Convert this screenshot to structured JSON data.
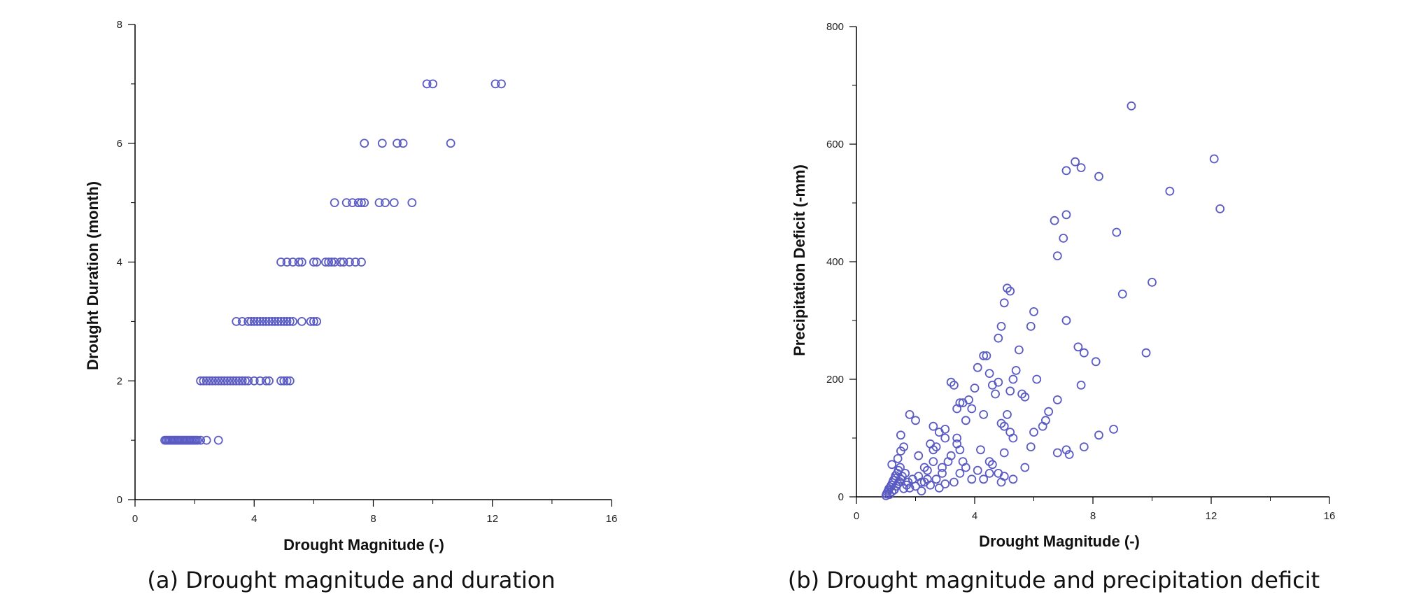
{
  "chart_data": [
    {
      "type": "scatter",
      "xlabel": "Drought Magnitude (-)",
      "ylabel": "Drought Duration (month)",
      "caption": "(a) Drought magnitude and duration",
      "xlim": [
        0,
        16
      ],
      "ylim": [
        0,
        8
      ],
      "xticks": [
        0,
        4,
        8,
        12,
        16
      ],
      "xminor": [
        2,
        6,
        10,
        14
      ],
      "yticks": [
        0,
        2,
        4,
        6,
        8
      ],
      "yminor": [
        1,
        3,
        5,
        7
      ],
      "marker_color": "#5b5bc4",
      "points": [
        [
          1.0,
          1
        ],
        [
          1.05,
          1
        ],
        [
          1.1,
          1
        ],
        [
          1.15,
          1
        ],
        [
          1.2,
          1
        ],
        [
          1.25,
          1
        ],
        [
          1.3,
          1
        ],
        [
          1.35,
          1
        ],
        [
          1.4,
          1
        ],
        [
          1.45,
          1
        ],
        [
          1.5,
          1
        ],
        [
          1.55,
          1
        ],
        [
          1.6,
          1
        ],
        [
          1.65,
          1
        ],
        [
          1.7,
          1
        ],
        [
          1.75,
          1
        ],
        [
          1.8,
          1
        ],
        [
          1.85,
          1
        ],
        [
          1.9,
          1
        ],
        [
          1.95,
          1
        ],
        [
          2.0,
          1
        ],
        [
          2.05,
          1
        ],
        [
          2.1,
          1
        ],
        [
          2.2,
          1
        ],
        [
          2.4,
          1
        ],
        [
          2.8,
          1
        ],
        [
          2.2,
          2
        ],
        [
          2.3,
          2
        ],
        [
          2.4,
          2
        ],
        [
          2.5,
          2
        ],
        [
          2.6,
          2
        ],
        [
          2.7,
          2
        ],
        [
          2.8,
          2
        ],
        [
          2.9,
          2
        ],
        [
          3.0,
          2
        ],
        [
          3.1,
          2
        ],
        [
          3.2,
          2
        ],
        [
          3.3,
          2
        ],
        [
          3.4,
          2
        ],
        [
          3.5,
          2
        ],
        [
          3.6,
          2
        ],
        [
          3.7,
          2
        ],
        [
          3.8,
          2
        ],
        [
          4.0,
          2
        ],
        [
          4.2,
          2
        ],
        [
          4.4,
          2
        ],
        [
          4.5,
          2
        ],
        [
          4.9,
          2
        ],
        [
          5.0,
          2
        ],
        [
          5.1,
          2
        ],
        [
          5.2,
          2
        ],
        [
          3.4,
          3
        ],
        [
          3.6,
          3
        ],
        [
          3.8,
          3
        ],
        [
          3.9,
          3
        ],
        [
          4.0,
          3
        ],
        [
          4.1,
          3
        ],
        [
          4.2,
          3
        ],
        [
          4.3,
          3
        ],
        [
          4.4,
          3
        ],
        [
          4.5,
          3
        ],
        [
          4.6,
          3
        ],
        [
          4.7,
          3
        ],
        [
          4.8,
          3
        ],
        [
          4.9,
          3
        ],
        [
          5.0,
          3
        ],
        [
          5.1,
          3
        ],
        [
          5.2,
          3
        ],
        [
          5.3,
          3
        ],
        [
          5.6,
          3
        ],
        [
          5.9,
          3
        ],
        [
          6.0,
          3
        ],
        [
          6.1,
          3
        ],
        [
          4.9,
          4
        ],
        [
          5.1,
          4
        ],
        [
          5.3,
          4
        ],
        [
          5.5,
          4
        ],
        [
          5.6,
          4
        ],
        [
          6.0,
          4
        ],
        [
          6.1,
          4
        ],
        [
          6.4,
          4
        ],
        [
          6.5,
          4
        ],
        [
          6.6,
          4
        ],
        [
          6.7,
          4
        ],
        [
          6.9,
          4
        ],
        [
          7.0,
          4
        ],
        [
          7.2,
          4
        ],
        [
          7.4,
          4
        ],
        [
          7.6,
          4
        ],
        [
          6.7,
          5
        ],
        [
          7.1,
          5
        ],
        [
          7.3,
          5
        ],
        [
          7.5,
          5
        ],
        [
          7.6,
          5
        ],
        [
          7.7,
          5
        ],
        [
          8.2,
          5
        ],
        [
          8.4,
          5
        ],
        [
          8.7,
          5
        ],
        [
          9.3,
          5
        ],
        [
          7.7,
          6
        ],
        [
          8.3,
          6
        ],
        [
          8.8,
          6
        ],
        [
          9.0,
          6
        ],
        [
          10.6,
          6
        ],
        [
          9.8,
          7
        ],
        [
          10.0,
          7
        ],
        [
          12.1,
          7
        ],
        [
          12.3,
          7
        ]
      ]
    },
    {
      "type": "scatter",
      "xlabel": "Drought Magnitude (-)",
      "ylabel": "Precipitation Deficit (-mm)",
      "caption": "(b) Drought magnitude and precipitation deficit",
      "xlim": [
        0,
        16
      ],
      "ylim": [
        0,
        800
      ],
      "xticks": [
        0,
        4,
        8,
        12,
        16
      ],
      "xminor": [
        2,
        6,
        10,
        14
      ],
      "yticks": [
        0,
        200,
        400,
        600,
        800
      ],
      "yminor": [
        100,
        300,
        500,
        700
      ],
      "marker_color": "#5b5bc4",
      "points": [
        [
          1.0,
          2
        ],
        [
          1.02,
          5
        ],
        [
          1.05,
          8
        ],
        [
          1.08,
          11
        ],
        [
          1.1,
          14
        ],
        [
          1.12,
          4
        ],
        [
          1.15,
          17
        ],
        [
          1.18,
          20
        ],
        [
          1.2,
          9
        ],
        [
          1.22,
          24
        ],
        [
          1.25,
          28
        ],
        [
          1.28,
          12
        ],
        [
          1.3,
          32
        ],
        [
          1.32,
          36
        ],
        [
          1.35,
          18
        ],
        [
          1.38,
          40
        ],
        [
          1.4,
          22
        ],
        [
          1.42,
          45
        ],
        [
          1.45,
          26
        ],
        [
          1.48,
          50
        ],
        [
          1.5,
          30
        ],
        [
          1.55,
          35
        ],
        [
          1.6,
          14
        ],
        [
          1.65,
          40
        ],
        [
          1.7,
          20
        ],
        [
          1.75,
          25
        ],
        [
          1.8,
          15
        ],
        [
          1.9,
          30
        ],
        [
          2.0,
          18
        ],
        [
          2.1,
          35
        ],
        [
          2.2,
          10
        ],
        [
          2.3,
          25
        ],
        [
          2.4,
          45
        ],
        [
          2.5,
          20
        ],
        [
          2.6,
          60
        ],
        [
          2.7,
          30
        ],
        [
          2.8,
          15
        ],
        [
          2.9,
          40
        ],
        [
          3.0,
          22
        ],
        [
          1.2,
          55
        ],
        [
          1.4,
          65
        ],
        [
          1.5,
          78
        ],
        [
          1.6,
          85
        ],
        [
          1.5,
          105
        ],
        [
          1.8,
          140
        ],
        [
          2.0,
          130
        ],
        [
          2.1,
          70
        ],
        [
          2.3,
          50
        ],
        [
          2.5,
          90
        ],
        [
          2.6,
          120
        ],
        [
          2.7,
          85
        ],
        [
          2.8,
          110
        ],
        [
          3.0,
          115
        ],
        [
          3.0,
          100
        ],
        [
          3.1,
          60
        ],
        [
          3.2,
          195
        ],
        [
          3.3,
          190
        ],
        [
          3.4,
          150
        ],
        [
          3.5,
          160
        ],
        [
          3.4,
          90
        ],
        [
          3.6,
          160
        ],
        [
          3.7,
          130
        ],
        [
          3.8,
          165
        ],
        [
          3.6,
          60
        ],
        [
          3.9,
          150
        ],
        [
          4.0,
          185
        ],
        [
          4.1,
          220
        ],
        [
          4.2,
          80
        ],
        [
          4.3,
          240
        ],
        [
          4.4,
          240
        ],
        [
          4.5,
          210
        ],
        [
          4.6,
          190
        ],
        [
          4.7,
          175
        ],
        [
          4.8,
          195
        ],
        [
          4.8,
          270
        ],
        [
          4.9,
          290
        ],
        [
          5.0,
          330
        ],
        [
          5.1,
          355
        ],
        [
          5.2,
          350
        ],
        [
          5.2,
          180
        ],
        [
          5.3,
          200
        ],
        [
          4.9,
          125
        ],
        [
          5.0,
          120
        ],
        [
          5.1,
          140
        ],
        [
          5.0,
          75
        ],
        [
          5.2,
          110
        ],
        [
          5.3,
          100
        ],
        [
          5.4,
          215
        ],
        [
          5.5,
          250
        ],
        [
          5.6,
          175
        ],
        [
          5.7,
          170
        ],
        [
          5.9,
          290
        ],
        [
          6.0,
          315
        ],
        [
          6.1,
          200
        ],
        [
          6.0,
          110
        ],
        [
          6.3,
          120
        ],
        [
          6.4,
          130
        ],
        [
          6.5,
          145
        ],
        [
          6.8,
          165
        ],
        [
          7.1,
          300
        ],
        [
          7.5,
          255
        ],
        [
          7.7,
          245
        ],
        [
          7.6,
          190
        ],
        [
          8.1,
          230
        ],
        [
          7.0,
          440
        ],
        [
          7.1,
          480
        ],
        [
          6.7,
          470
        ],
        [
          6.8,
          410
        ],
        [
          7.1,
          555
        ],
        [
          7.4,
          570
        ],
        [
          7.6,
          560
        ],
        [
          8.2,
          545
        ],
        [
          8.8,
          450
        ],
        [
          9.0,
          345
        ],
        [
          9.3,
          665
        ],
        [
          9.8,
          245
        ],
        [
          10.0,
          365
        ],
        [
          10.6,
          520
        ],
        [
          12.1,
          575
        ],
        [
          12.3,
          490
        ],
        [
          6.8,
          75
        ],
        [
          7.1,
          80
        ],
        [
          7.2,
          72
        ],
        [
          7.7,
          85
        ],
        [
          8.2,
          105
        ],
        [
          8.7,
          115
        ],
        [
          4.8,
          40
        ],
        [
          4.9,
          25
        ],
        [
          5.0,
          35
        ],
        [
          5.3,
          30
        ],
        [
          5.7,
          50
        ],
        [
          5.9,
          85
        ],
        [
          4.3,
          30
        ],
        [
          4.5,
          40
        ],
        [
          4.6,
          55
        ],
        [
          4.1,
          45
        ],
        [
          3.9,
          30
        ],
        [
          3.7,
          50
        ],
        [
          3.5,
          40
        ],
        [
          3.3,
          25
        ],
        [
          2.9,
          50
        ],
        [
          3.2,
          70
        ],
        [
          4.3,
          140
        ],
        [
          4.5,
          60
        ],
        [
          3.5,
          80
        ],
        [
          3.4,
          100
        ],
        [
          2.6,
          80
        ],
        [
          2.2,
          25
        ],
        [
          2.4,
          30
        ]
      ]
    }
  ]
}
